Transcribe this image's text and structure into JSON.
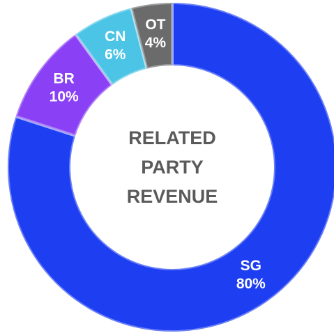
{
  "chart_data": {
    "type": "donut",
    "title": "RELATED PARTY REVENUE",
    "categories": [
      "SG",
      "BR",
      "CN",
      "OT"
    ],
    "values": [
      80,
      10,
      6,
      4
    ],
    "value_labels": [
      "80%",
      "10%",
      "6%",
      "4%"
    ],
    "colors": [
      "#1e3ef2",
      "#8a40f4",
      "#4bc4e6",
      "#6b6b6b"
    ]
  }
}
